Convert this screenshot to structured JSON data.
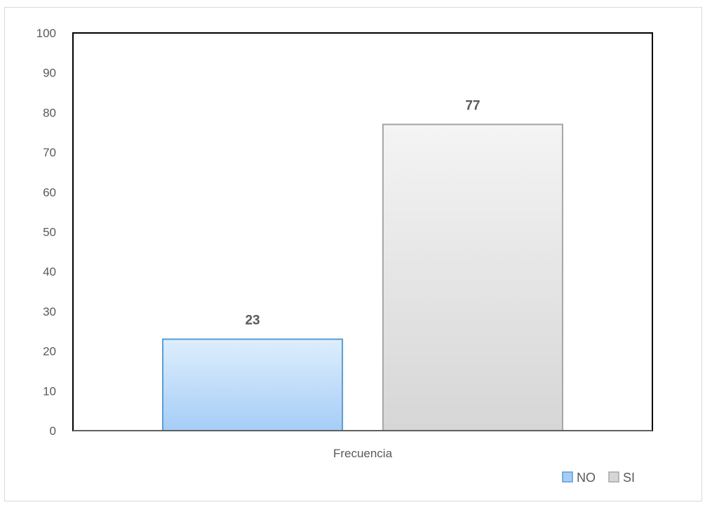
{
  "chart_data": {
    "type": "bar",
    "categories": [
      "Frecuencia"
    ],
    "series": [
      {
        "name": "NO",
        "values": [
          23
        ],
        "color": "#5b9bd5",
        "fill_top": "#ddeefc",
        "fill_bottom": "#a6cdf7"
      },
      {
        "name": "SI",
        "values": [
          77
        ],
        "color": "#a5a5a5",
        "fill_top": "#f4f4f4",
        "fill_bottom": "#d6d6d6"
      }
    ],
    "data_labels": [
      "23",
      "77"
    ],
    "y_ticks": [
      "0",
      "10",
      "20",
      "30",
      "40",
      "50",
      "60",
      "70",
      "80",
      "90",
      "100"
    ],
    "ylim": [
      0,
      100
    ],
    "grid": false,
    "legend_position": "bottom-right"
  }
}
